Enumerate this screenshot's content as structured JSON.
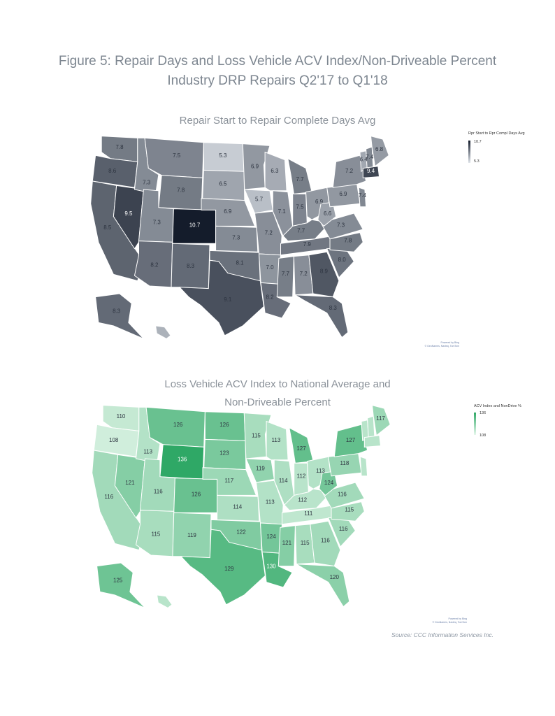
{
  "figure": {
    "title_line1": "Figure 5: Repair Days and Loss Vehicle ACV Index/Non-Driveable Percent",
    "title_line2": "Industry DRP Repairs Q2'17 to Q1'18",
    "source": "Source: CCC Information Services Inc."
  },
  "map1": {
    "title": "Repair Start to Repair Complete Days Avg",
    "legend_title": "Rpr Start to Rpr Compl Days Avg",
    "legend_max": "10.7",
    "legend_min": "5.3",
    "credit_line1": "Powered by Bing",
    "credit_line2": "© GeoNames, Navteq, TomTom",
    "colors": {
      "low": "#dfe4ea",
      "high": "#141c2b"
    },
    "states": [
      {
        "code": "WA",
        "value": "7.8"
      },
      {
        "code": "OR",
        "value": "8.6"
      },
      {
        "code": "CA",
        "value": "8.5"
      },
      {
        "code": "NV",
        "value": "9.5"
      },
      {
        "code": "ID",
        "value": "7.3"
      },
      {
        "code": "MT",
        "value": "7.5"
      },
      {
        "code": "WY",
        "value": "7.8"
      },
      {
        "code": "UT",
        "value": "7.3"
      },
      {
        "code": "CO",
        "value": "10.7"
      },
      {
        "code": "AZ",
        "value": "8.2"
      },
      {
        "code": "NM",
        "value": "8.3"
      },
      {
        "code": "ND",
        "value": "5.3"
      },
      {
        "code": "SD",
        "value": "6.5"
      },
      {
        "code": "NE",
        "value": "6.9"
      },
      {
        "code": "KS",
        "value": "7.3"
      },
      {
        "code": "OK",
        "value": "8.1"
      },
      {
        "code": "TX",
        "value": "9.1"
      },
      {
        "code": "MN",
        "value": "6.9"
      },
      {
        "code": "IA",
        "value": "5.7"
      },
      {
        "code": "MO",
        "value": "7.2"
      },
      {
        "code": "AR",
        "value": "7.0"
      },
      {
        "code": "LA",
        "value": "8.2"
      },
      {
        "code": "WI",
        "value": "6.3"
      },
      {
        "code": "IL",
        "value": "7.1"
      },
      {
        "code": "MI",
        "value": "7.7"
      },
      {
        "code": "IN",
        "value": "7.5"
      },
      {
        "code": "OH",
        "value": "6.9"
      },
      {
        "code": "KY",
        "value": "7.7"
      },
      {
        "code": "TN",
        "value": "7.9"
      },
      {
        "code": "MS",
        "value": "7.7"
      },
      {
        "code": "AL",
        "value": "7.2"
      },
      {
        "code": "GA",
        "value": "8.9"
      },
      {
        "code": "FL",
        "value": "8.3"
      },
      {
        "code": "SC",
        "value": "8.0"
      },
      {
        "code": "NC",
        "value": "7.8"
      },
      {
        "code": "VA",
        "value": "7.3"
      },
      {
        "code": "WV",
        "value": "6.6"
      },
      {
        "code": "PA",
        "value": "6.9"
      },
      {
        "code": "NY",
        "value": "7.2"
      },
      {
        "code": "VT",
        "value": "6.4"
      },
      {
        "code": "NH",
        "value": "7.4"
      },
      {
        "code": "ME",
        "value": "6.8"
      },
      {
        "code": "MA",
        "value": "9.4"
      },
      {
        "code": "NJ",
        "value": "7.4"
      },
      {
        "code": "AK",
        "value": "8.3"
      },
      {
        "code": "HI",
        "value": ""
      }
    ]
  },
  "map2": {
    "title_line1": "Loss Vehicle ACV Index to National Average and",
    "title_line2": "Non-Driveable Percent",
    "legend_title": "ACV Index and NonDrive %",
    "legend_max": "136",
    "legend_min": "108",
    "credit_line1": "Powered by Bing",
    "credit_line2": "© GeoNames, Navteq, TomTom",
    "colors": {
      "low": "#e6f8ec",
      "high": "#2fa866"
    },
    "states": [
      {
        "code": "WA",
        "value": "110"
      },
      {
        "code": "OR",
        "value": "108"
      },
      {
        "code": "CA",
        "value": "116"
      },
      {
        "code": "NV",
        "value": "121"
      },
      {
        "code": "ID",
        "value": "113"
      },
      {
        "code": "MT",
        "value": "126"
      },
      {
        "code": "WY",
        "value": "136"
      },
      {
        "code": "UT",
        "value": "116"
      },
      {
        "code": "CO",
        "value": "126"
      },
      {
        "code": "AZ",
        "value": "115"
      },
      {
        "code": "NM",
        "value": "119"
      },
      {
        "code": "ND",
        "value": "126"
      },
      {
        "code": "SD",
        "value": "123"
      },
      {
        "code": "NE",
        "value": "117"
      },
      {
        "code": "KS",
        "value": "114"
      },
      {
        "code": "OK",
        "value": "122"
      },
      {
        "code": "TX",
        "value": "129"
      },
      {
        "code": "MN",
        "value": "115"
      },
      {
        "code": "IA",
        "value": "119"
      },
      {
        "code": "MO",
        "value": "113"
      },
      {
        "code": "AR",
        "value": "124"
      },
      {
        "code": "LA",
        "value": "130"
      },
      {
        "code": "WI",
        "value": "113"
      },
      {
        "code": "IL",
        "value": "114"
      },
      {
        "code": "MI",
        "value": "127"
      },
      {
        "code": "IN",
        "value": "112"
      },
      {
        "code": "OH",
        "value": "113"
      },
      {
        "code": "KY",
        "value": "112"
      },
      {
        "code": "TN",
        "value": "111"
      },
      {
        "code": "MS",
        "value": "121"
      },
      {
        "code": "AL",
        "value": "115"
      },
      {
        "code": "GA",
        "value": "116"
      },
      {
        "code": "FL",
        "value": "120"
      },
      {
        "code": "SC",
        "value": "116"
      },
      {
        "code": "NC",
        "value": "115"
      },
      {
        "code": "VA",
        "value": "116"
      },
      {
        "code": "WV",
        "value": "124"
      },
      {
        "code": "PA",
        "value": "118"
      },
      {
        "code": "NY",
        "value": "127"
      },
      {
        "code": "VT",
        "value": ""
      },
      {
        "code": "NH",
        "value": ""
      },
      {
        "code": "ME",
        "value": "117"
      },
      {
        "code": "MA",
        "value": ""
      },
      {
        "code": "NJ",
        "value": ""
      },
      {
        "code": "AK",
        "value": "125"
      },
      {
        "code": "HI",
        "value": ""
      }
    ]
  }
}
